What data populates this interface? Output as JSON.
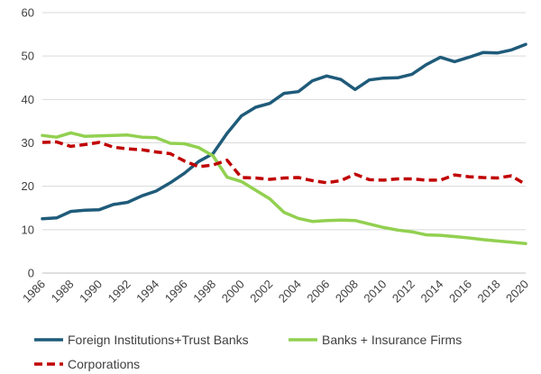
{
  "chart_data": {
    "type": "line",
    "title": "",
    "xlabel": "",
    "ylabel": "",
    "ylim": [
      0,
      60
    ],
    "yticks": [
      0,
      10,
      20,
      30,
      40,
      50,
      60
    ],
    "grid": true,
    "legend_position": "bottom",
    "x": [
      1986,
      1987,
      1988,
      1989,
      1990,
      1991,
      1992,
      1993,
      1994,
      1995,
      1996,
      1997,
      1998,
      1999,
      2000,
      2001,
      2002,
      2003,
      2004,
      2005,
      2006,
      2007,
      2008,
      2009,
      2010,
      2011,
      2012,
      2013,
      2014,
      2015,
      2016,
      2017,
      2018,
      2019,
      2020
    ],
    "xticks": [
      "1986",
      "1988",
      "1990",
      "1992",
      "1994",
      "1996",
      "1998",
      "2000",
      "2002",
      "2004",
      "2006",
      "2008",
      "2010",
      "2012",
      "2014",
      "2016",
      "2018",
      "2020"
    ],
    "series": [
      {
        "name": "Foreign Institutions+Trust Banks",
        "color": "#1f5b7a",
        "style": "solid",
        "values": [
          12.5,
          12.7,
          14.2,
          14.5,
          14.6,
          15.8,
          16.3,
          17.8,
          18.9,
          20.8,
          23.0,
          25.7,
          27.5,
          32.2,
          36.2,
          38.2,
          39.1,
          41.4,
          41.8,
          44.3,
          45.4,
          44.6,
          42.3,
          44.5,
          44.9,
          45.0,
          45.8,
          48.0,
          49.7,
          48.7,
          49.7,
          50.8,
          50.7,
          51.4,
          52.7
        ]
      },
      {
        "name": "Banks + Insurance Firms",
        "color": "#92d050",
        "style": "solid",
        "values": [
          31.7,
          31.3,
          32.3,
          31.5,
          31.6,
          31.7,
          31.8,
          31.3,
          31.2,
          29.9,
          29.8,
          28.9,
          27.0,
          22.1,
          21.1,
          19.1,
          17.1,
          14.0,
          12.6,
          11.9,
          12.1,
          12.2,
          12.1,
          11.3,
          10.5,
          9.9,
          9.5,
          8.8,
          8.7,
          8.4,
          8.1,
          7.7,
          7.4,
          7.1,
          6.8
        ]
      },
      {
        "name": "Corporations",
        "color": "#c00000",
        "style": "dashed",
        "values": [
          30.1,
          30.2,
          29.2,
          29.6,
          30.1,
          29.0,
          28.6,
          28.4,
          27.9,
          27.5,
          25.8,
          24.5,
          24.9,
          26.0,
          22.0,
          21.9,
          21.6,
          21.9,
          22.0,
          21.3,
          20.8,
          21.3,
          22.8,
          21.5,
          21.4,
          21.7,
          21.7,
          21.4,
          21.4,
          22.6,
          22.2,
          22.0,
          21.9,
          22.4,
          20.4
        ]
      }
    ]
  }
}
